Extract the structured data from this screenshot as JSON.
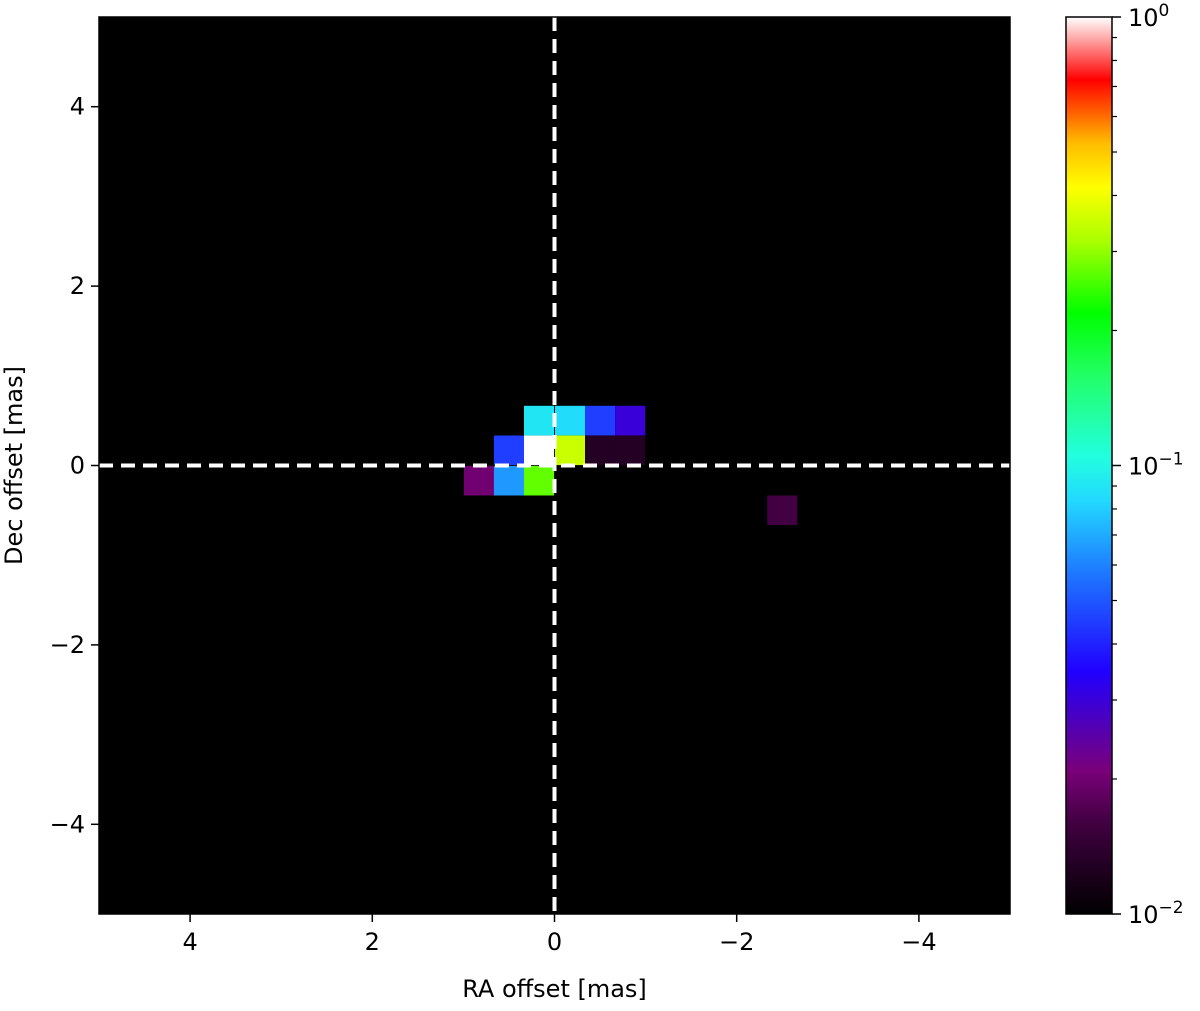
{
  "chart_data": {
    "type": "heatmap",
    "xlabel": "RA offset [mas]",
    "ylabel": "Dec offset [mas]",
    "xlim": [
      5,
      -5
    ],
    "ylim": [
      -5,
      5
    ],
    "x_ticks": [
      {
        "value": 4,
        "label": "4"
      },
      {
        "value": 2,
        "label": "2"
      },
      {
        "value": 0,
        "label": "0"
      },
      {
        "value": -2,
        "label": "−2"
      },
      {
        "value": -4,
        "label": "−4"
      }
    ],
    "y_ticks": [
      {
        "value": 4,
        "label": "4"
      },
      {
        "value": 2,
        "label": "2"
      },
      {
        "value": 0,
        "label": "0"
      },
      {
        "value": -2,
        "label": "−2"
      },
      {
        "value": -4,
        "label": "−4"
      }
    ],
    "pixel_size_mas": 0.33,
    "cells": [
      {
        "x": 0.17,
        "y": 0.5,
        "value": 0.09
      },
      {
        "x": -0.17,
        "y": 0.5,
        "value": 0.085
      },
      {
        "x": -0.5,
        "y": 0.5,
        "value": 0.045
      },
      {
        "x": -0.83,
        "y": 0.5,
        "value": 0.03
      },
      {
        "x": 0.5,
        "y": 0.17,
        "value": 0.045
      },
      {
        "x": 0.17,
        "y": 0.17,
        "value": 1.0
      },
      {
        "x": -0.17,
        "y": 0.17,
        "value": 0.35
      },
      {
        "x": -0.5,
        "y": 0.17,
        "value": 0.013
      },
      {
        "x": -0.83,
        "y": 0.17,
        "value": 0.013
      },
      {
        "x": 0.83,
        "y": -0.17,
        "value": 0.02
      },
      {
        "x": 0.5,
        "y": -0.17,
        "value": 0.065
      },
      {
        "x": 0.17,
        "y": -0.17,
        "value": 0.27
      },
      {
        "x": -2.5,
        "y": -0.5,
        "value": 0.016
      }
    ],
    "reference_lines": [
      {
        "axis": "x",
        "value": 0,
        "style": "dashed",
        "color": "#ffffff"
      },
      {
        "axis": "y",
        "value": 0,
        "style": "dashed",
        "color": "#ffffff"
      }
    ],
    "background_color": "#000000",
    "colorbar": {
      "scale": "log",
      "min": 0.01,
      "max": 1,
      "major_ticks": [
        {
          "value": 1,
          "base": "10",
          "exp": "0"
        },
        {
          "value": 0.1,
          "base": "10",
          "exp": "−1"
        },
        {
          "value": 0.01,
          "base": "10",
          "exp": "−2"
        }
      ],
      "colormap": "gist_ncar-like",
      "colormap_stops": [
        {
          "t": 0.0,
          "color": "#000000"
        },
        {
          "t": 0.1,
          "color": "#400040"
        },
        {
          "t": 0.16,
          "color": "#7a007a"
        },
        {
          "t": 0.27,
          "color": "#2000ff"
        },
        {
          "t": 0.38,
          "color": "#1e78ff"
        },
        {
          "t": 0.46,
          "color": "#22d8ff"
        },
        {
          "t": 0.51,
          "color": "#22ffe0"
        },
        {
          "t": 0.6,
          "color": "#22ff66"
        },
        {
          "t": 0.67,
          "color": "#00ff00"
        },
        {
          "t": 0.75,
          "color": "#aaff00"
        },
        {
          "t": 0.81,
          "color": "#ffff00"
        },
        {
          "t": 0.86,
          "color": "#ffbb00"
        },
        {
          "t": 0.93,
          "color": "#ff0000"
        },
        {
          "t": 1.0,
          "color": "#ffffff"
        }
      ]
    }
  }
}
